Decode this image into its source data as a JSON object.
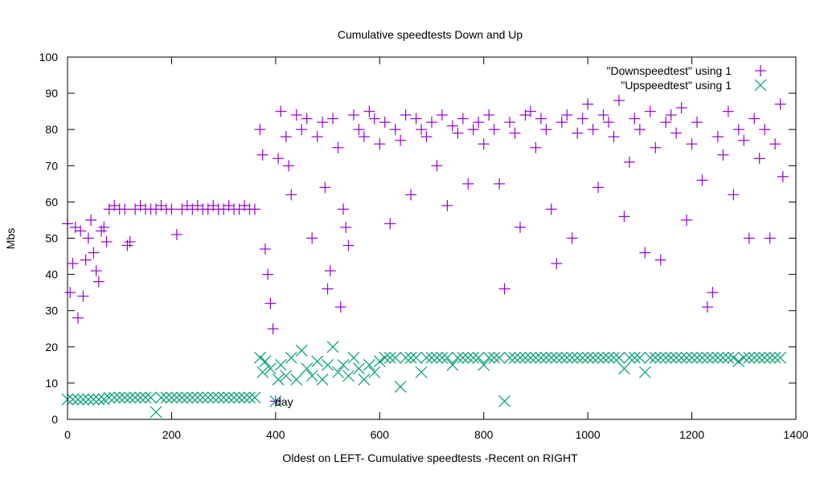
{
  "chart_data": {
    "type": "scatter",
    "title": "Cumulative speedtests Down and Up",
    "xlabel": "Oldest on LEFT- Cumulative speedtests -Recent on RIGHT",
    "ylabel": "Mbs",
    "xlim": [
      0,
      1400
    ],
    "ylim": [
      0,
      100
    ],
    "xticks": [
      0,
      200,
      400,
      600,
      800,
      1000,
      1200,
      1400
    ],
    "yticks": [
      0,
      10,
      20,
      30,
      40,
      50,
      60,
      70,
      80,
      90,
      100
    ],
    "grid": false,
    "legend_position": "top-right",
    "annotation": "day",
    "series": [
      {
        "name": "\"Downspeedtest\" using 1",
        "marker": "plus",
        "color": "#9400d3",
        "points": [
          [
            0,
            54
          ],
          [
            5,
            35
          ],
          [
            10,
            43
          ],
          [
            15,
            53
          ],
          [
            20,
            28
          ],
          [
            25,
            52
          ],
          [
            30,
            34
          ],
          [
            35,
            44
          ],
          [
            40,
            50
          ],
          [
            45,
            55
          ],
          [
            50,
            46
          ],
          [
            55,
            41
          ],
          [
            60,
            38
          ],
          [
            65,
            52
          ],
          [
            70,
            53
          ],
          [
            75,
            49
          ],
          [
            80,
            58
          ],
          [
            90,
            59
          ],
          [
            100,
            58
          ],
          [
            110,
            58
          ],
          [
            115,
            48
          ],
          [
            120,
            49
          ],
          [
            130,
            58
          ],
          [
            140,
            59
          ],
          [
            150,
            58
          ],
          [
            160,
            58
          ],
          [
            170,
            58
          ],
          [
            180,
            59
          ],
          [
            190,
            58
          ],
          [
            200,
            58
          ],
          [
            210,
            51
          ],
          [
            220,
            58
          ],
          [
            230,
            59
          ],
          [
            240,
            58
          ],
          [
            250,
            59
          ],
          [
            260,
            58
          ],
          [
            270,
            58
          ],
          [
            280,
            59
          ],
          [
            290,
            58
          ],
          [
            300,
            58
          ],
          [
            310,
            59
          ],
          [
            320,
            58
          ],
          [
            330,
            58
          ],
          [
            340,
            59
          ],
          [
            350,
            58
          ],
          [
            360,
            58
          ],
          [
            370,
            80
          ],
          [
            375,
            73
          ],
          [
            380,
            47
          ],
          [
            385,
            40
          ],
          [
            390,
            32
          ],
          [
            395,
            25
          ],
          [
            400,
            5
          ],
          [
            405,
            72
          ],
          [
            410,
            85
          ],
          [
            420,
            78
          ],
          [
            425,
            70
          ],
          [
            430,
            62
          ],
          [
            440,
            84
          ],
          [
            450,
            80
          ],
          [
            460,
            83
          ],
          [
            470,
            50
          ],
          [
            480,
            78
          ],
          [
            490,
            82
          ],
          [
            495,
            64
          ],
          [
            500,
            36
          ],
          [
            505,
            41
          ],
          [
            510,
            83
          ],
          [
            520,
            75
          ],
          [
            525,
            31
          ],
          [
            530,
            58
          ],
          [
            535,
            53
          ],
          [
            540,
            48
          ],
          [
            550,
            84
          ],
          [
            560,
            80
          ],
          [
            570,
            78
          ],
          [
            580,
            85
          ],
          [
            590,
            83
          ],
          [
            600,
            76
          ],
          [
            610,
            82
          ],
          [
            620,
            54
          ],
          [
            630,
            80
          ],
          [
            640,
            77
          ],
          [
            650,
            84
          ],
          [
            660,
            62
          ],
          [
            670,
            83
          ],
          [
            680,
            80
          ],
          [
            690,
            78
          ],
          [
            700,
            82
          ],
          [
            710,
            70
          ],
          [
            720,
            84
          ],
          [
            730,
            59
          ],
          [
            740,
            81
          ],
          [
            750,
            79
          ],
          [
            760,
            83
          ],
          [
            770,
            65
          ],
          [
            780,
            80
          ],
          [
            790,
            82
          ],
          [
            800,
            76
          ],
          [
            810,
            84
          ],
          [
            820,
            80
          ],
          [
            830,
            65
          ],
          [
            840,
            36
          ],
          [
            850,
            82
          ],
          [
            860,
            79
          ],
          [
            870,
            53
          ],
          [
            880,
            84
          ],
          [
            890,
            85
          ],
          [
            900,
            75
          ],
          [
            910,
            83
          ],
          [
            920,
            80
          ],
          [
            930,
            58
          ],
          [
            940,
            43
          ],
          [
            950,
            82
          ],
          [
            960,
            84
          ],
          [
            970,
            50
          ],
          [
            980,
            79
          ],
          [
            990,
            83
          ],
          [
            1000,
            87
          ],
          [
            1010,
            80
          ],
          [
            1020,
            64
          ],
          [
            1030,
            84
          ],
          [
            1040,
            82
          ],
          [
            1050,
            78
          ],
          [
            1060,
            88
          ],
          [
            1070,
            56
          ],
          [
            1080,
            71
          ],
          [
            1090,
            83
          ],
          [
            1100,
            80
          ],
          [
            1110,
            46
          ],
          [
            1120,
            85
          ],
          [
            1130,
            75
          ],
          [
            1140,
            44
          ],
          [
            1150,
            82
          ],
          [
            1160,
            84
          ],
          [
            1170,
            79
          ],
          [
            1180,
            86
          ],
          [
            1190,
            55
          ],
          [
            1200,
            76
          ],
          [
            1210,
            82
          ],
          [
            1220,
            66
          ],
          [
            1230,
            31
          ],
          [
            1240,
            35
          ],
          [
            1250,
            78
          ],
          [
            1260,
            73
          ],
          [
            1270,
            85
          ],
          [
            1280,
            62
          ],
          [
            1290,
            80
          ],
          [
            1300,
            77
          ],
          [
            1310,
            50
          ],
          [
            1320,
            83
          ],
          [
            1330,
            72
          ],
          [
            1340,
            80
          ],
          [
            1350,
            50
          ],
          [
            1360,
            76
          ],
          [
            1370,
            87
          ],
          [
            1375,
            67
          ]
        ]
      },
      {
        "name": "\"Upspeedtest\" using 1",
        "marker": "cross",
        "color": "#009e73",
        "points": [
          [
            0,
            5.5
          ],
          [
            10,
            5.5
          ],
          [
            20,
            5.5
          ],
          [
            30,
            5.5
          ],
          [
            40,
            5.5
          ],
          [
            50,
            5.5
          ],
          [
            60,
            5.5
          ],
          [
            70,
            5.5
          ],
          [
            80,
            6
          ],
          [
            90,
            6
          ],
          [
            100,
            6
          ],
          [
            110,
            6
          ],
          [
            120,
            6
          ],
          [
            130,
            6
          ],
          [
            140,
            6
          ],
          [
            150,
            6
          ],
          [
            160,
            6
          ],
          [
            170,
            2
          ],
          [
            180,
            6
          ],
          [
            190,
            6
          ],
          [
            200,
            6
          ],
          [
            210,
            6
          ],
          [
            220,
            6
          ],
          [
            230,
            6
          ],
          [
            240,
            6
          ],
          [
            250,
            6
          ],
          [
            260,
            6
          ],
          [
            270,
            6
          ],
          [
            280,
            6
          ],
          [
            290,
            6
          ],
          [
            300,
            6
          ],
          [
            310,
            6
          ],
          [
            320,
            6
          ],
          [
            330,
            6
          ],
          [
            340,
            6
          ],
          [
            350,
            6
          ],
          [
            360,
            6
          ],
          [
            370,
            17
          ],
          [
            375,
            13
          ],
          [
            380,
            16
          ],
          [
            390,
            14
          ],
          [
            400,
            5
          ],
          [
            405,
            11
          ],
          [
            410,
            15
          ],
          [
            420,
            12
          ],
          [
            430,
            17
          ],
          [
            440,
            11
          ],
          [
            450,
            19
          ],
          [
            460,
            14
          ],
          [
            470,
            12
          ],
          [
            480,
            16
          ],
          [
            490,
            11
          ],
          [
            500,
            15
          ],
          [
            510,
            20
          ],
          [
            520,
            13
          ],
          [
            530,
            15
          ],
          [
            540,
            12
          ],
          [
            550,
            17
          ],
          [
            560,
            14
          ],
          [
            570,
            11
          ],
          [
            580,
            15
          ],
          [
            590,
            13
          ],
          [
            600,
            16
          ],
          [
            610,
            17
          ],
          [
            620,
            17
          ],
          [
            630,
            17
          ],
          [
            640,
            9
          ],
          [
            650,
            17
          ],
          [
            660,
            17
          ],
          [
            670,
            17
          ],
          [
            680,
            13
          ],
          [
            690,
            17
          ],
          [
            700,
            17
          ],
          [
            710,
            17
          ],
          [
            720,
            17
          ],
          [
            730,
            17
          ],
          [
            740,
            15
          ],
          [
            750,
            17
          ],
          [
            760,
            17
          ],
          [
            770,
            17
          ],
          [
            780,
            17
          ],
          [
            790,
            17
          ],
          [
            800,
            15
          ],
          [
            810,
            17
          ],
          [
            820,
            17
          ],
          [
            830,
            17
          ],
          [
            840,
            5
          ],
          [
            850,
            17
          ],
          [
            860,
            17
          ],
          [
            870,
            17
          ],
          [
            880,
            17
          ],
          [
            890,
            17
          ],
          [
            900,
            17
          ],
          [
            910,
            17
          ],
          [
            920,
            17
          ],
          [
            930,
            17
          ],
          [
            940,
            17
          ],
          [
            950,
            17
          ],
          [
            960,
            17
          ],
          [
            970,
            17
          ],
          [
            980,
            17
          ],
          [
            990,
            17
          ],
          [
            1000,
            17
          ],
          [
            1010,
            17
          ],
          [
            1020,
            17
          ],
          [
            1030,
            17
          ],
          [
            1040,
            17
          ],
          [
            1050,
            17
          ],
          [
            1060,
            17
          ],
          [
            1070,
            14
          ],
          [
            1080,
            17
          ],
          [
            1090,
            17
          ],
          [
            1100,
            17
          ],
          [
            1110,
            13
          ],
          [
            1120,
            17
          ],
          [
            1130,
            17
          ],
          [
            1140,
            17
          ],
          [
            1150,
            17
          ],
          [
            1160,
            17
          ],
          [
            1170,
            17
          ],
          [
            1180,
            17
          ],
          [
            1190,
            17
          ],
          [
            1200,
            17
          ],
          [
            1210,
            17
          ],
          [
            1220,
            17
          ],
          [
            1230,
            17
          ],
          [
            1240,
            17
          ],
          [
            1250,
            17
          ],
          [
            1260,
            17
          ],
          [
            1270,
            17
          ],
          [
            1280,
            17
          ],
          [
            1290,
            16
          ],
          [
            1300,
            17
          ],
          [
            1310,
            17
          ],
          [
            1320,
            17
          ],
          [
            1330,
            17
          ],
          [
            1340,
            17
          ],
          [
            1350,
            17
          ],
          [
            1360,
            17
          ],
          [
            1370,
            17
          ]
        ]
      }
    ]
  }
}
